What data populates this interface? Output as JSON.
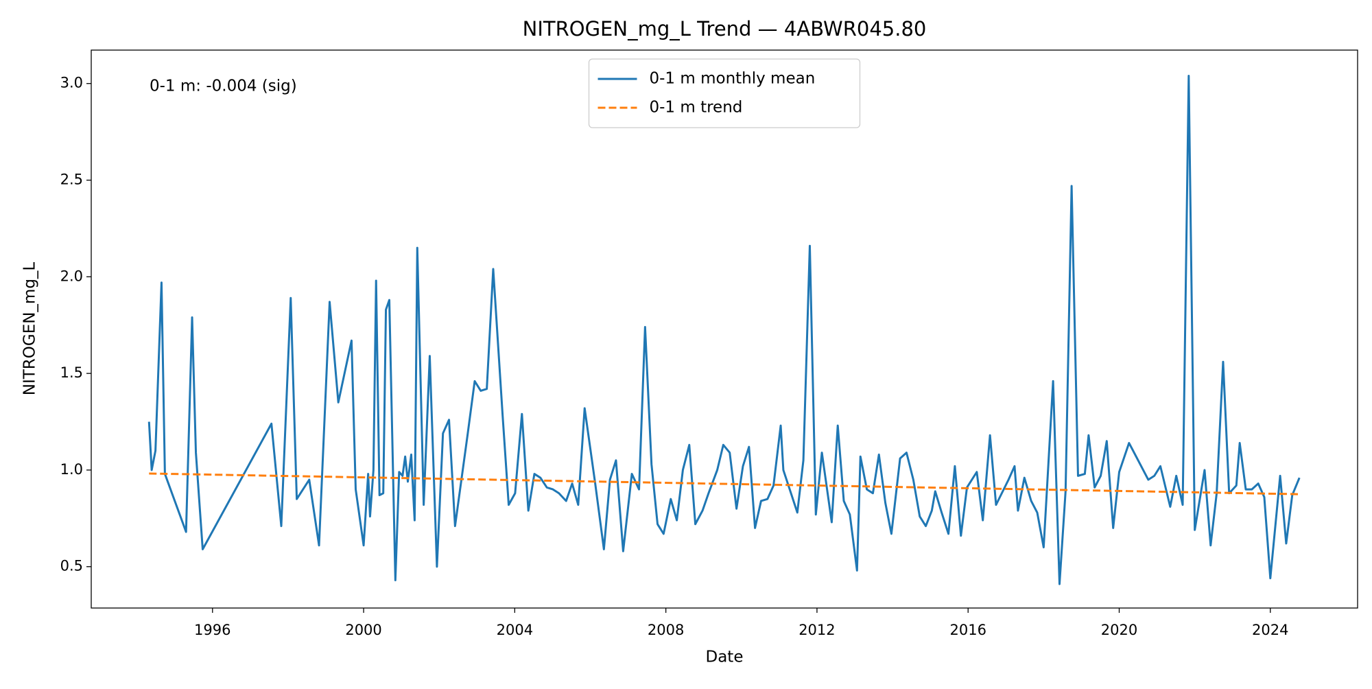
{
  "chart_data": {
    "type": "line",
    "title": "NITROGEN_mg_L Trend — 4ABWR045.80",
    "x_label": "Date",
    "y_label": "NITROGEN_mg_L",
    "annotation": "0-1 m: -0.004 (sig)",
    "legend": "upper center",
    "grid": false,
    "xlim": [
      1992.79,
      2026.31
    ],
    "ylim": [
      0.286,
      3.173
    ],
    "xticks": [
      1996,
      2000,
      2004,
      2008,
      2012,
      2016,
      2020,
      2024
    ],
    "yticks": [
      0.5,
      {
        "value": 1,
        "label": "1.0"
      },
      1.5,
      {
        "value": 2,
        "label": "2.0"
      },
      2.5,
      {
        "value": 3,
        "label": "3.0"
      }
    ],
    "series": [
      {
        "name": "0-1 m monthly mean",
        "color": "#1f77b4",
        "dash": false,
        "x": [
          1994.32,
          1994.39,
          1994.49,
          1994.65,
          1994.74,
          1995.3,
          1995.46,
          1995.56,
          1995.74,
          1997.56,
          1997.82,
          1998.07,
          1998.23,
          1998.56,
          1998.82,
          1999.1,
          1999.33,
          1999.68,
          1999.79,
          2000.0,
          2000.12,
          2000.17,
          2000.26,
          2000.33,
          2000.42,
          2000.52,
          2000.59,
          2000.68,
          2000.84,
          2000.94,
          2001.03,
          2001.1,
          2001.17,
          2001.26,
          2001.35,
          2001.42,
          2001.59,
          2001.75,
          2001.94,
          2002.1,
          2002.26,
          2002.42,
          2002.75,
          2002.94,
          2003.1,
          2003.26,
          2003.43,
          2003.68,
          2003.84,
          2004.01,
          2004.19,
          2004.36,
          2004.52,
          2004.68,
          2004.85,
          2005.01,
          2005.17,
          2005.36,
          2005.52,
          2005.68,
          2005.85,
          2006.13,
          2006.36,
          2006.52,
          2006.68,
          2006.87,
          2007.1,
          2007.29,
          2007.45,
          2007.62,
          2007.78,
          2007.94,
          2008.13,
          2008.29,
          2008.45,
          2008.62,
          2008.78,
          2008.97,
          2009.13,
          2009.36,
          2009.52,
          2009.69,
          2009.87,
          2010.04,
          2010.2,
          2010.36,
          2010.52,
          2010.69,
          2010.85,
          2011.04,
          2011.11,
          2011.48,
          2011.64,
          2011.81,
          2011.97,
          2012.13,
          2012.39,
          2012.55,
          2012.71,
          2012.87,
          2013.06,
          2013.15,
          2013.32,
          2013.48,
          2013.64,
          2013.81,
          2013.97,
          2014.2,
          2014.37,
          2014.55,
          2014.72,
          2014.88,
          2015.04,
          2015.13,
          2015.3,
          2015.48,
          2015.65,
          2015.81,
          2015.97,
          2016.23,
          2016.39,
          2016.58,
          2016.74,
          2017.07,
          2017.23,
          2017.32,
          2017.49,
          2017.67,
          2017.83,
          2018.0,
          2018.25,
          2018.42,
          2018.58,
          2018.74,
          2018.91,
          2019.09,
          2019.19,
          2019.35,
          2019.51,
          2019.67,
          2019.84,
          2020.0,
          2020.26,
          2020.77,
          2020.93,
          2021.09,
          2021.35,
          2021.51,
          2021.68,
          2021.84,
          2022.0,
          2022.26,
          2022.42,
          2022.58,
          2022.75,
          2022.91,
          2023.1,
          2023.19,
          2023.35,
          2023.51,
          2023.68,
          2023.84,
          2024.0,
          2024.26,
          2024.42,
          2024.58,
          2024.77
        ],
        "values": [
          1.25,
          1.0,
          1.1,
          1.97,
          0.98,
          0.68,
          1.79,
          1.09,
          0.59,
          1.24,
          0.71,
          1.89,
          0.85,
          0.95,
          0.61,
          1.87,
          1.35,
          1.67,
          0.9,
          0.61,
          0.98,
          0.76,
          1.0,
          1.98,
          0.87,
          0.88,
          1.83,
          1.88,
          0.43,
          0.99,
          0.97,
          1.07,
          0.94,
          1.08,
          0.74,
          2.15,
          0.82,
          1.59,
          0.5,
          1.19,
          1.26,
          0.71,
          1.18,
          1.46,
          1.41,
          1.42,
          2.04,
          1.28,
          0.82,
          0.88,
          1.29,
          0.79,
          0.98,
          0.96,
          0.91,
          0.9,
          0.88,
          0.84,
          0.93,
          0.82,
          1.32,
          0.93,
          0.59,
          0.95,
          1.05,
          0.58,
          0.98,
          0.9,
          1.74,
          1.03,
          0.72,
          0.67,
          0.85,
          0.74,
          1.0,
          1.13,
          0.72,
          0.79,
          0.88,
          1.0,
          1.13,
          1.09,
          0.8,
          1.02,
          1.12,
          0.7,
          0.84,
          0.85,
          0.92,
          1.23,
          1.0,
          0.78,
          1.05,
          2.16,
          0.77,
          1.09,
          0.73,
          1.23,
          0.84,
          0.77,
          0.48,
          1.07,
          0.9,
          0.88,
          1.08,
          0.83,
          0.67,
          1.06,
          1.09,
          0.95,
          0.76,
          0.71,
          0.79,
          0.89,
          0.78,
          0.67,
          1.02,
          0.66,
          0.91,
          0.99,
          0.74,
          1.18,
          0.82,
          0.95,
          1.02,
          0.79,
          0.96,
          0.84,
          0.78,
          0.6,
          1.46,
          0.41,
          0.89,
          2.47,
          0.97,
          0.98,
          1.18,
          0.91,
          0.97,
          1.15,
          0.7,
          0.99,
          1.14,
          0.95,
          0.97,
          1.02,
          0.81,
          0.97,
          0.82,
          3.04,
          0.69,
          1.0,
          0.61,
          0.88,
          1.56,
          0.88,
          0.92,
          1.14,
          0.9,
          0.9,
          0.93,
          0.86,
          0.44,
          0.97,
          0.62,
          0.87,
          0.96
        ]
      },
      {
        "name": "0-1 m trend",
        "color": "#ff7f0e",
        "dash": true,
        "x": [
          1994.32,
          2024.77
        ],
        "values": [
          0.982,
          0.875
        ]
      }
    ]
  }
}
